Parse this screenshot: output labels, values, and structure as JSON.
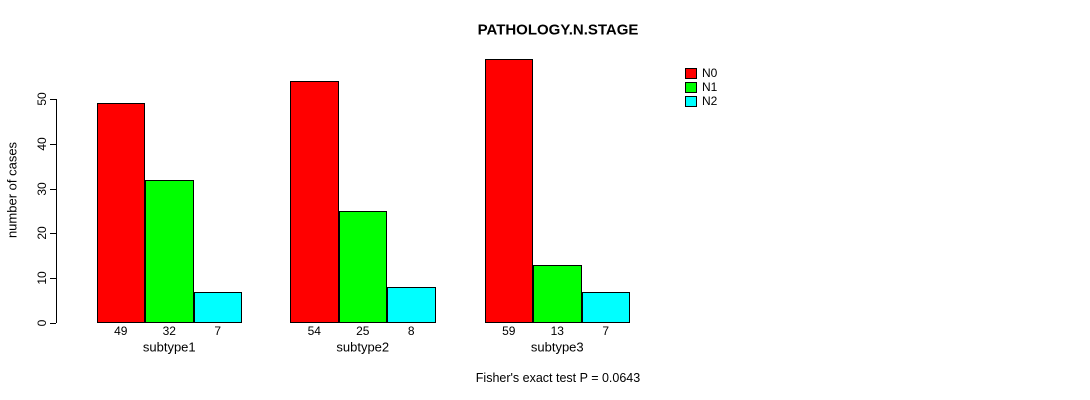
{
  "title": "PATHOLOGY.N.STAGE",
  "ylabel": "number of cases",
  "annotation": "Fisher's exact test P = 0.0643",
  "colors": {
    "background": "#FFFFFF",
    "axis": "#000000",
    "bar_border": "#000000",
    "n0": "#FF0000",
    "n1": "#00FF00",
    "n2": "#00FFFF"
  },
  "chart_data": {
    "type": "bar",
    "grouped": true,
    "title": "PATHOLOGY.N.STAGE",
    "xlabel": "",
    "ylabel": "number of cases",
    "categories": [
      "subtype1",
      "subtype2",
      "subtype3"
    ],
    "series": [
      {
        "name": "N0",
        "color": "#FF0000",
        "values": [
          49,
          54,
          59
        ]
      },
      {
        "name": "N1",
        "color": "#00FF00",
        "values": [
          32,
          25,
          13
        ]
      },
      {
        "name": "N2",
        "color": "#00FFFF",
        "values": [
          7,
          8,
          7
        ]
      }
    ],
    "ylim": [
      0,
      59
    ],
    "yticks": [
      0,
      10,
      20,
      30,
      40,
      50
    ],
    "grid": false,
    "legend_position": "top-right",
    "legend_entries": [
      "N0",
      "N1",
      "N2"
    ],
    "bar_value_labels": true,
    "annotation": "Fisher's exact test P = 0.0643"
  }
}
